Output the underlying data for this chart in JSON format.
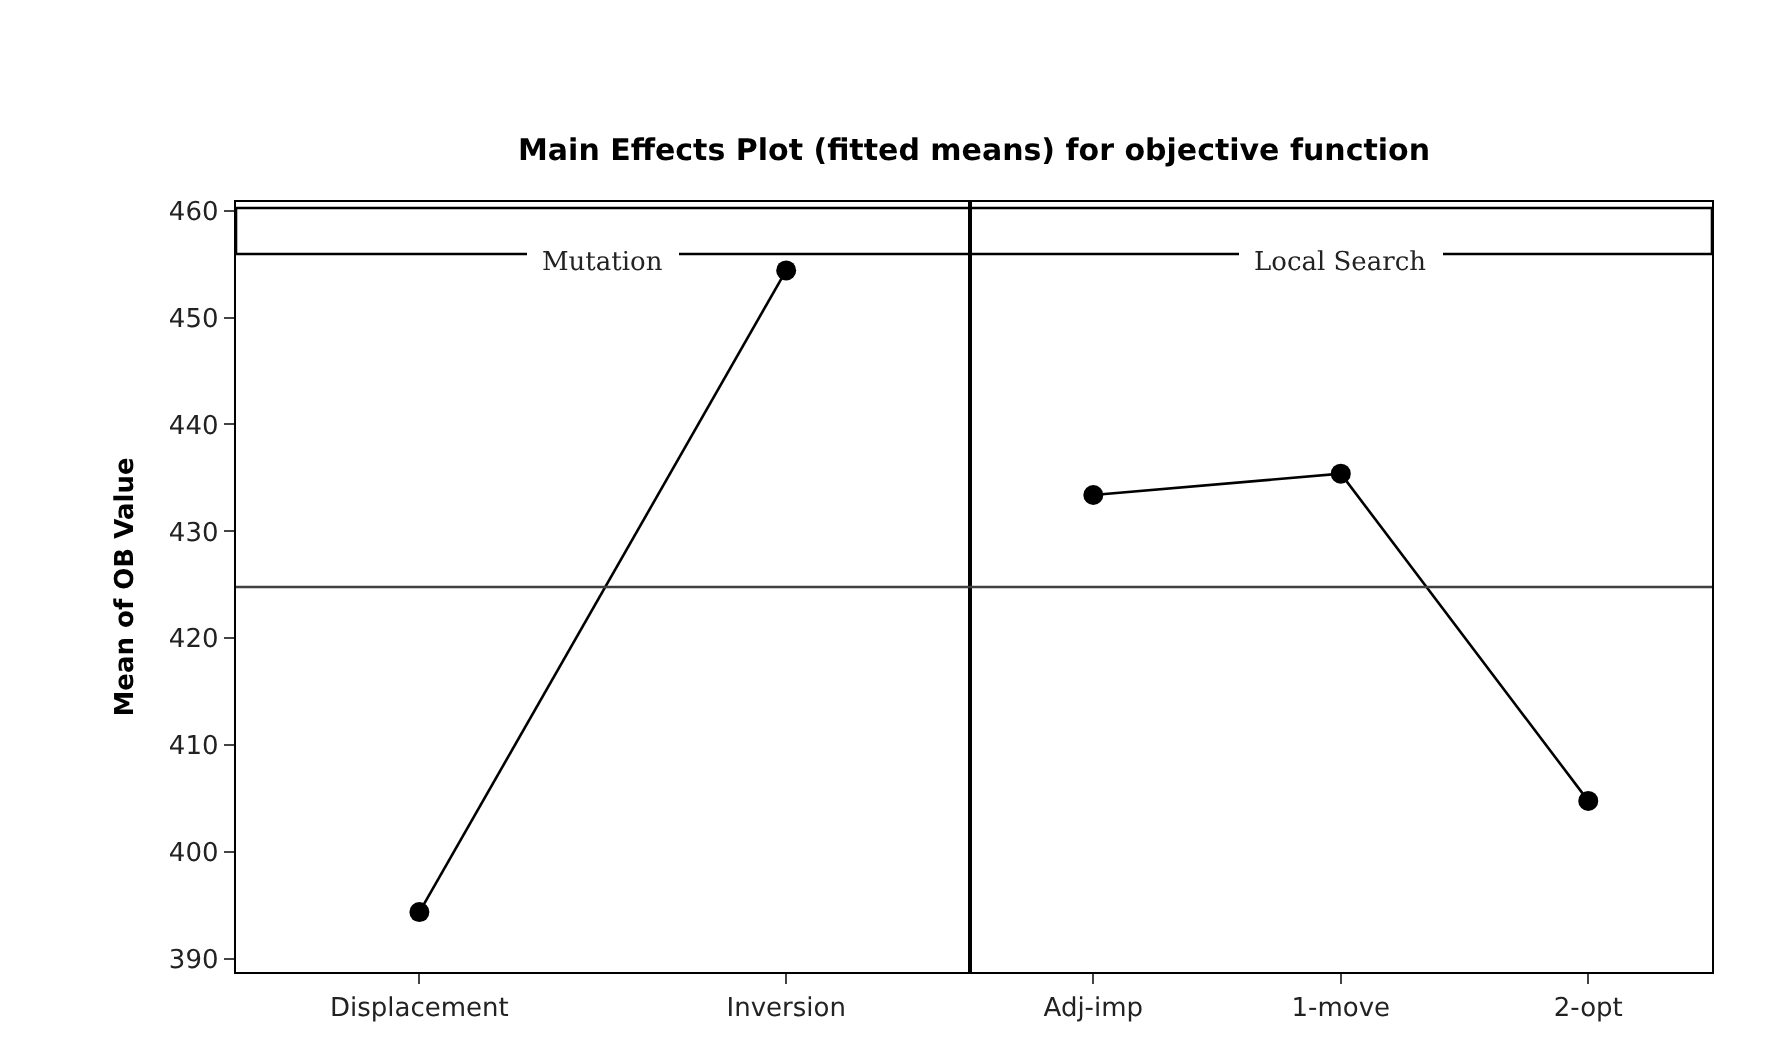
{
  "chart_data": [
    {
      "type": "line",
      "title": "Main Effects Plot (fitted means) for objective function",
      "subtitle": "Mutation",
      "ylabel": "Mean of OB Value",
      "categories": [
        "Displacement",
        "Inversion"
      ],
      "series": [
        {
          "color": "#000000",
          "values": [
            394.4,
            454.4
          ]
        }
      ],
      "ylim": [
        388.8,
        460.8
      ],
      "yticks": [
        390,
        400,
        410,
        420,
        430,
        440,
        450,
        460
      ],
      "ref_lines": [
        {
          "axis": "y",
          "value": 424.8,
          "color": "#404040"
        }
      ],
      "marker": "circle",
      "grid": false
    },
    {
      "type": "line",
      "subtitle": "Local Search",
      "categories": [
        "Adj-imp",
        "1-move",
        "2-opt"
      ],
      "series": [
        {
          "color": "#000000",
          "values": [
            433.4,
            435.4,
            404.8
          ]
        }
      ],
      "ylim": [
        388.8,
        460.8
      ],
      "yticks": [
        390,
        400,
        410,
        420,
        430,
        440,
        450,
        460
      ],
      "ref_lines": [
        {
          "axis": "y",
          "value": 424.8,
          "color": "#404040"
        }
      ],
      "marker": "circle",
      "grid": false,
      "tick_labels": "x"
    }
  ]
}
